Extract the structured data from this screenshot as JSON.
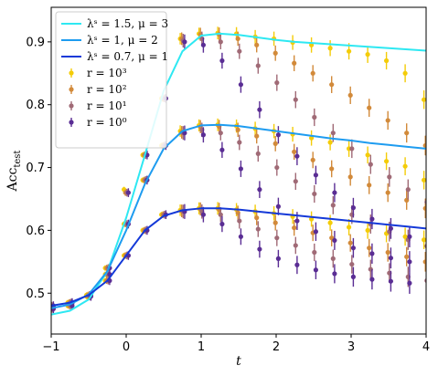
{
  "chart_data": {
    "type": "line",
    "xlabel": "t",
    "ylabel_main": "Acc",
    "ylabel_sub": "test",
    "xlim": [
      -1,
      4
    ],
    "ylim": [
      0.435,
      0.955
    ],
    "xticks": [
      -1,
      0,
      1,
      2,
      3,
      4
    ],
    "xtick_labels": [
      "−1",
      "0",
      "1",
      "2",
      "3",
      "4"
    ],
    "yticks": [
      0.5,
      0.6,
      0.7,
      0.8,
      0.9
    ],
    "ytick_labels": [
      "0.5",
      "0.6",
      "0.7",
      "0.8",
      "0.9"
    ],
    "grid": false,
    "legend_position": "upper-left",
    "curves": [
      {
        "name": "λˢ = 1.5, μ = 3",
        "color": "#2ee8f2",
        "x": [
          -1.0,
          -0.75,
          -0.5,
          -0.25,
          0.0,
          0.25,
          0.5,
          0.75,
          1.0,
          1.25,
          1.5,
          1.75,
          2.0,
          2.25,
          2.5,
          2.75,
          3.0,
          3.25,
          3.5,
          3.75,
          4.0
        ],
        "y": [
          0.466,
          0.472,
          0.49,
          0.535,
          0.62,
          0.72,
          0.822,
          0.885,
          0.91,
          0.913,
          0.911,
          0.907,
          0.903,
          0.9,
          0.898,
          0.896,
          0.894,
          0.892,
          0.89,
          0.888,
          0.886
        ]
      },
      {
        "name": "λˢ = 1, μ = 2",
        "color": "#1e9cf0",
        "x": [
          -1.0,
          -0.75,
          -0.5,
          -0.25,
          0.0,
          0.25,
          0.5,
          0.75,
          1.0,
          1.25,
          1.5,
          1.75,
          2.0,
          2.25,
          2.5,
          2.75,
          3.0,
          3.25,
          3.5,
          3.75,
          4.0
        ],
        "y": [
          0.476,
          0.482,
          0.498,
          0.535,
          0.6,
          0.674,
          0.73,
          0.758,
          0.767,
          0.768,
          0.766,
          0.762,
          0.758,
          0.754,
          0.75,
          0.746,
          0.743,
          0.739,
          0.736,
          0.733,
          0.73
        ]
      },
      {
        "name": "λˢ = 0.7, μ = 1",
        "color": "#1439d8",
        "x": [
          -1.0,
          -0.75,
          -0.5,
          -0.25,
          0.0,
          0.25,
          0.5,
          0.75,
          1.0,
          1.25,
          1.5,
          1.75,
          2.0,
          2.25,
          2.5,
          2.75,
          3.0,
          3.25,
          3.5,
          3.75,
          4.0
        ],
        "y": [
          0.48,
          0.485,
          0.497,
          0.52,
          0.56,
          0.6,
          0.623,
          0.632,
          0.635,
          0.635,
          0.633,
          0.63,
          0.627,
          0.624,
          0.621,
          0.618,
          0.615,
          0.612,
          0.609,
          0.606,
          0.603
        ]
      }
    ],
    "series": [
      {
        "name": "r = 10³",
        "color": "#f4cc08",
        "x": [
          -1.0,
          -0.75,
          -0.5,
          -0.25,
          0.0,
          0.25,
          0.5,
          0.75,
          1.0,
          1.25,
          1.5,
          1.75,
          2.0,
          2.25,
          2.5,
          2.75,
          3.0,
          3.25,
          3.5,
          3.75,
          4.0,
          -1.0,
          -0.75,
          -0.5,
          -0.25,
          0.0,
          0.25,
          0.5,
          0.75,
          1.0,
          1.25,
          1.5,
          1.75,
          2.0,
          2.25,
          2.5,
          2.75,
          3.0,
          3.25,
          3.5,
          3.75,
          4.0,
          -1.0,
          -0.75,
          -0.5,
          -0.25,
          0.0,
          0.25,
          0.5,
          0.75,
          1.0,
          1.25,
          1.5,
          1.75,
          2.0,
          2.25,
          2.5,
          2.75,
          3.0,
          3.25,
          3.5,
          3.75,
          4.0
        ],
        "y": [
          0.475,
          0.48,
          0.495,
          0.54,
          0.665,
          0.72,
          0.81,
          0.905,
          0.913,
          0.914,
          0.913,
          0.908,
          0.905,
          0.899,
          0.895,
          0.89,
          0.885,
          0.88,
          0.87,
          0.85,
          0.808,
          0.477,
          0.485,
          0.497,
          0.53,
          0.61,
          0.68,
          0.735,
          0.758,
          0.767,
          0.768,
          0.766,
          0.762,
          0.758,
          0.753,
          0.747,
          0.74,
          0.73,
          0.72,
          0.71,
          0.702,
          0.68,
          0.48,
          0.484,
          0.495,
          0.52,
          0.56,
          0.6,
          0.625,
          0.632,
          0.635,
          0.635,
          0.633,
          0.63,
          0.627,
          0.622,
          0.618,
          0.612,
          0.605,
          0.6,
          0.595,
          0.59,
          0.585
        ]
      },
      {
        "name": "r = 10²",
        "color": "#d28a3a",
        "x": [
          -1.0,
          -0.75,
          -0.5,
          -0.25,
          0.0,
          0.25,
          0.5,
          0.75,
          1.0,
          1.25,
          1.5,
          1.75,
          2.0,
          2.25,
          2.5,
          2.75,
          3.0,
          3.25,
          3.5,
          3.75,
          4.0,
          -1.0,
          -0.75,
          -0.5,
          -0.25,
          0.0,
          0.25,
          0.5,
          0.75,
          1.0,
          1.25,
          1.5,
          1.75,
          2.0,
          2.25,
          2.5,
          2.75,
          3.0,
          3.25,
          3.5,
          3.75,
          4.0,
          -1.0,
          -0.75,
          -0.5,
          -0.25,
          0.0,
          0.25,
          0.5,
          0.75,
          1.0,
          1.25,
          1.5,
          1.75,
          2.0,
          2.25,
          2.5,
          2.75,
          3.0,
          3.25,
          3.5,
          3.75,
          4.0
        ],
        "y": [
          0.475,
          0.48,
          0.495,
          0.54,
          0.66,
          0.72,
          0.81,
          0.905,
          0.912,
          0.912,
          0.905,
          0.895,
          0.882,
          0.866,
          0.85,
          0.832,
          0.815,
          0.795,
          0.775,
          0.755,
          0.735,
          0.477,
          0.485,
          0.497,
          0.53,
          0.61,
          0.68,
          0.735,
          0.756,
          0.765,
          0.765,
          0.76,
          0.75,
          0.738,
          0.725,
          0.712,
          0.698,
          0.685,
          0.672,
          0.66,
          0.648,
          0.635,
          0.48,
          0.484,
          0.495,
          0.52,
          0.56,
          0.6,
          0.625,
          0.631,
          0.634,
          0.633,
          0.628,
          0.62,
          0.612,
          0.604,
          0.596,
          0.588,
          0.58,
          0.572,
          0.565,
          0.558,
          0.55
        ]
      },
      {
        "name": "r = 10¹",
        "color": "#a06a76",
        "x": [
          -1.0,
          -0.75,
          -0.5,
          -0.25,
          0.0,
          0.25,
          0.5,
          0.75,
          1.0,
          1.25,
          1.5,
          1.75,
          2.0,
          2.25,
          2.5,
          2.75,
          3.0,
          3.25,
          3.5,
          3.75,
          4.0,
          -1.0,
          -0.75,
          -0.5,
          -0.25,
          0.0,
          0.25,
          0.5,
          0.75,
          1.0,
          1.25,
          1.5,
          1.75,
          2.0,
          2.25,
          2.5,
          2.75,
          3.0,
          3.25,
          3.5,
          3.75,
          4.0,
          -1.0,
          -0.75,
          -0.5,
          -0.25,
          0.0,
          0.25,
          0.5,
          0.75,
          1.0,
          1.25,
          1.5,
          1.75,
          2.0,
          2.25,
          2.5,
          2.75,
          3.0,
          3.25,
          3.5,
          3.75,
          4.0
        ],
        "y": [
          0.475,
          0.48,
          0.495,
          0.54,
          0.66,
          0.72,
          0.81,
          0.902,
          0.905,
          0.9,
          0.885,
          0.862,
          0.835,
          0.808,
          0.78,
          0.755,
          0.73,
          0.705,
          0.685,
          0.665,
          0.645,
          0.477,
          0.485,
          0.497,
          0.53,
          0.61,
          0.68,
          0.735,
          0.755,
          0.76,
          0.755,
          0.74,
          0.722,
          0.7,
          0.678,
          0.658,
          0.64,
          0.625,
          0.61,
          0.598,
          0.585,
          0.575,
          0.48,
          0.484,
          0.495,
          0.52,
          0.56,
          0.6,
          0.625,
          0.63,
          0.63,
          0.625,
          0.615,
          0.602,
          0.588,
          0.576,
          0.565,
          0.555,
          0.546,
          0.538,
          0.532,
          0.526,
          0.52
        ]
      },
      {
        "name": "r = 10⁰",
        "color": "#5a2d94",
        "x": [
          -1.0,
          -0.75,
          -0.5,
          -0.25,
          0.0,
          0.25,
          0.5,
          0.75,
          1.0,
          1.25,
          1.5,
          1.75,
          2.0,
          2.25,
          2.5,
          2.75,
          3.0,
          3.25,
          3.5,
          3.75,
          4.0,
          -1.0,
          -0.75,
          -0.5,
          -0.25,
          0.0,
          0.25,
          0.5,
          0.75,
          1.0,
          1.25,
          1.5,
          1.75,
          2.0,
          2.25,
          2.5,
          2.75,
          3.0,
          3.25,
          3.5,
          3.75,
          4.0,
          -1.0,
          -0.75,
          -0.5,
          -0.25,
          0.0,
          0.25,
          0.5,
          0.75,
          1.0,
          1.25,
          1.5,
          1.75,
          2.0,
          2.25,
          2.5,
          2.75,
          3.0,
          3.25,
          3.5,
          3.75,
          4.0
        ],
        "y": [
          0.475,
          0.48,
          0.495,
          0.54,
          0.66,
          0.72,
          0.81,
          0.9,
          0.895,
          0.87,
          0.832,
          0.792,
          0.752,
          0.718,
          0.688,
          0.66,
          0.636,
          0.618,
          0.603,
          0.59,
          0.58,
          0.477,
          0.485,
          0.497,
          0.53,
          0.61,
          0.68,
          0.735,
          0.755,
          0.752,
          0.728,
          0.698,
          0.665,
          0.638,
          0.615,
          0.598,
          0.584,
          0.572,
          0.563,
          0.556,
          0.55,
          0.545,
          0.48,
          0.484,
          0.495,
          0.52,
          0.56,
          0.6,
          0.625,
          0.63,
          0.625,
          0.61,
          0.59,
          0.57,
          0.555,
          0.545,
          0.537,
          0.531,
          0.526,
          0.522,
          0.519,
          0.516,
          0.514
        ]
      }
    ]
  }
}
